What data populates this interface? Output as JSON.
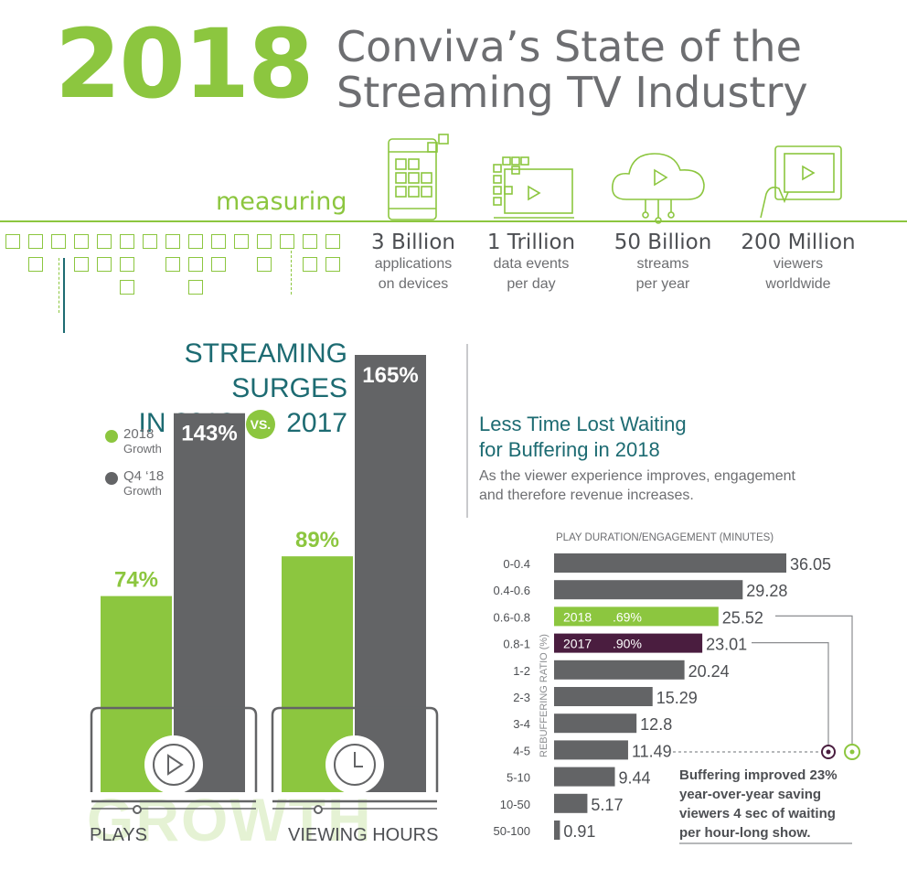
{
  "header": {
    "year": "2018",
    "title_line1": "Conviva’s State of the",
    "title_line2": "Streaming TV Industry",
    "measuring": "measuring"
  },
  "stats": [
    {
      "value": "3 Billion",
      "line1": "applications",
      "line2": "on devices",
      "icon": "phone-apps-icon"
    },
    {
      "value": "1 Trillion",
      "line1": "data events",
      "line2": "per day",
      "icon": "data-monitor-icon"
    },
    {
      "value": "50 Billion",
      "line1": "streams",
      "line2": "per year",
      "icon": "cloud-stream-icon"
    },
    {
      "value": "200 Million",
      "line1": "viewers",
      "line2": "worldwide",
      "icon": "tablet-hand-icon"
    }
  ],
  "surge": {
    "line1": "STREAMING SURGES",
    "line2_a": "IN 2018",
    "vs": "VS.",
    "line2_b": "2017",
    "legend": [
      {
        "name": "2018",
        "sub": "Growth",
        "color": "#8cc63f"
      },
      {
        "name": "Q4 ‘18",
        "sub": "Growth",
        "color": "#636466"
      }
    ],
    "watermark": "GROWTH"
  },
  "colors": {
    "green": "#8cc63f",
    "gray": "#636466",
    "purple": "#4a1d3f",
    "teal": "#1d6b72"
  },
  "chart_data": [
    {
      "type": "bar",
      "categories": [
        "PLAYS",
        "VIEWING HOURS"
      ],
      "series": [
        {
          "name": "2018",
          "values": [
            74,
            89
          ],
          "labels": [
            "74%",
            "89%"
          ]
        },
        {
          "name": "Q4 ‘18",
          "values": [
            143,
            165
          ],
          "labels": [
            "143%",
            "165%"
          ]
        }
      ]
    },
    {
      "type": "bar",
      "orientation": "horizontal",
      "title": "Less Time Lost Waiting",
      "title_line2": "for Buffering in 2018",
      "subtitle_line1": "As the viewer experience improves, engagement",
      "subtitle_line2": "and therefore revenue increases.",
      "xlabel": "PLAY DURATION/ENGAGEMENT (MINUTES)",
      "ylabel": "REBUFFERING RATIO (%)",
      "categories": [
        "0-0.4",
        "0.4-0.6",
        "0.6-0.8",
        "0.8-1",
        "1-2",
        "2-3",
        "3-4",
        "4-5",
        "5-10",
        "10-50",
        "50-100"
      ],
      "values": [
        36.05,
        29.28,
        25.52,
        23.01,
        20.24,
        15.29,
        12.8,
        11.49,
        9.44,
        5.17,
        0.91
      ],
      "value_labels": [
        "36.05",
        "29.28",
        "25.52",
        "23.01",
        "20.24",
        "15.29",
        "12.8",
        "11.49",
        "9.44",
        "5.17",
        "0.91"
      ],
      "highlights": [
        {
          "index": 2,
          "year": "2018",
          "ratio": ".69%",
          "color": "#8cc63f"
        },
        {
          "index": 3,
          "year": "2017",
          "ratio": ".90%",
          "color": "#4a1d3f"
        }
      ],
      "annotation": [
        "Buffering improved 23%",
        "year-over-year saving",
        "viewers 4 sec of waiting",
        "per hour-long show."
      ]
    }
  ]
}
